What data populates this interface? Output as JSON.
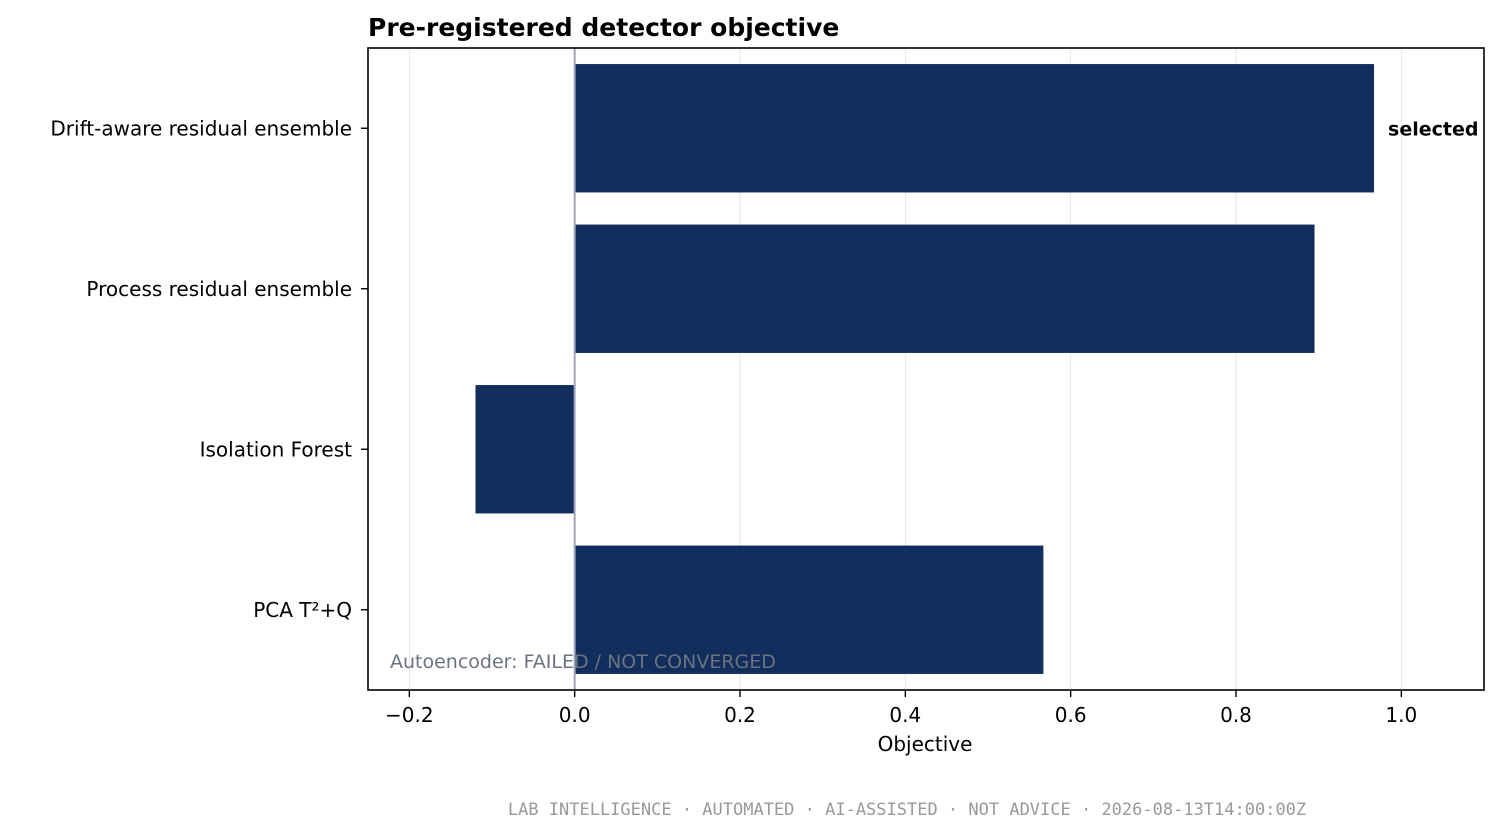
{
  "chart_data": {
    "type": "bar",
    "orientation": "horizontal",
    "title": "Pre-registered detector objective",
    "xlabel": "Objective",
    "ylabel": "",
    "categories": [
      "Drift-aware residual ensemble",
      "Process residual ensemble",
      "Isolation Forest",
      "PCA T²+Q"
    ],
    "values": [
      0.967,
      0.895,
      -0.12,
      0.567
    ],
    "xlim": [
      -0.25,
      1.1
    ],
    "xticks": [
      -0.2,
      0.0,
      0.2,
      0.4,
      0.6,
      0.8,
      1.0
    ],
    "xtick_labels": [
      "−0.2",
      "0.0",
      "0.2",
      "0.4",
      "0.6",
      "0.8",
      "1.0"
    ],
    "grid": "x",
    "bar_color": "#112e5c",
    "zero_line_color": "#a0a4b8",
    "annotations": [
      {
        "category": "Drift-aware residual ensemble",
        "text": "selected"
      }
    ],
    "note": "Autoencoder: FAILED / NOT CONVERGED",
    "note_color": "#6b7280"
  },
  "footer": {
    "text": "LAB INTELLIGENCE · AUTOMATED · AI-ASSISTED · NOT ADVICE · 2026-08-13T14:00:00Z"
  }
}
